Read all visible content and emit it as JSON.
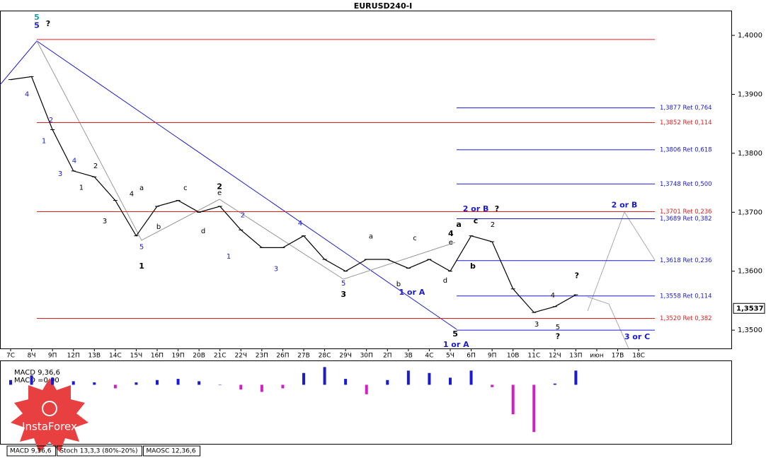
{
  "chart_data": {
    "type": "line",
    "title": "EURUSD240-I",
    "categories": [
      "7С",
      "8Ч",
      "9П",
      "12П",
      "13В",
      "14С",
      "15Ч",
      "16П",
      "19П",
      "20В",
      "21С",
      "22Ч",
      "23П",
      "26П",
      "27В",
      "28С",
      "29Ч",
      "30П",
      "2П",
      "3В",
      "4С",
      "5Ч",
      "6П",
      "9П",
      "10В",
      "11С",
      "12Ч",
      "13П",
      "июн",
      "17В",
      "18С"
    ],
    "series": [
      {
        "name": "EURUSD",
        "color": "#000000",
        "values": [
          1.3925,
          1.393,
          1.384,
          1.377,
          1.376,
          1.372,
          1.366,
          1.371,
          1.372,
          1.37,
          1.371,
          1.367,
          1.364,
          1.364,
          1.366,
          1.362,
          1.36,
          1.362,
          1.362,
          1.3605,
          1.362,
          1.36,
          1.366,
          1.365,
          1.357,
          1.353,
          1.354,
          1.356,
          null,
          null,
          null
        ]
      }
    ],
    "ylim": [
      1.3469,
      1.4042
    ],
    "yticks": [
      {
        "value": 1.35,
        "label": "1,3500"
      },
      {
        "value": 1.36,
        "label": "1,3600"
      },
      {
        "value": 1.37,
        "label": "1,3700"
      },
      {
        "value": 1.38,
        "label": "1,3800"
      },
      {
        "value": 1.39,
        "label": "1,3900"
      },
      {
        "value": 1.4,
        "label": "1,4000"
      }
    ],
    "current_price": {
      "value": 1.3537,
      "label": "1,3537"
    },
    "levels": [
      {
        "value": 1.3993,
        "color": "#e02020"
      },
      {
        "value": 1.3877,
        "label": "1,3877 Ret 0,764",
        "color": "#1a1ad0"
      },
      {
        "value": 1.3852,
        "label": "1,3852 Ret 0,114",
        "color": "#e02020"
      },
      {
        "value": 1.3806,
        "label": "1,3806 Ret 0,618",
        "color": "#1a1ad0"
      },
      {
        "value": 1.3748,
        "label": "1,3748 Ret 0,500",
        "color": "#1a1ad0"
      },
      {
        "value": 1.3701,
        "label": "1,3701 Ret 0,236",
        "color": "#e02020"
      },
      {
        "value": 1.3689,
        "label": "1,3689 Ret 0,382",
        "color": "#1a1ad0"
      },
      {
        "value": 1.3618,
        "label": "1,3618 Ret 0,236",
        "color": "#1a1ad0"
      },
      {
        "value": 1.3558,
        "label": "1,3558 Ret 0,114",
        "color": "#1a1ad0"
      },
      {
        "value": 1.352,
        "label": "1,3520 Ret 0,382",
        "color": "#e02020"
      },
      {
        "value": 1.35,
        "color": "#1a1ad0"
      }
    ],
    "annotations": [
      {
        "text": "5",
        "x": 1.25,
        "y": 1.403,
        "color": "#1a9bb5",
        "bold": true
      },
      {
        "text": "5",
        "x": 1.25,
        "y": 1.4016,
        "color": "#1a1ad0",
        "bold": true
      },
      {
        "text": "?",
        "x": 1.79,
        "y": 1.4019,
        "color": "#000000",
        "bold": true
      },
      {
        "text": "4",
        "x": 0.78,
        "y": 1.39,
        "color": "#1a1ad0"
      },
      {
        "text": "1",
        "x": 1.59,
        "y": 1.3821,
        "color": "#1a1ad0"
      },
      {
        "text": "2",
        "x": 1.93,
        "y": 1.3856,
        "color": "#1a1ad0"
      },
      {
        "text": "3",
        "x": 2.37,
        "y": 1.3765,
        "color": "#1a1ad0"
      },
      {
        "text": "4",
        "x": 3.04,
        "y": 1.3787,
        "color": "#1a1ad0"
      },
      {
        "text": "1",
        "x": 3.38,
        "y": 1.3742,
        "color": "#000000"
      },
      {
        "text": "2",
        "x": 4.06,
        "y": 1.3778,
        "color": "#000000"
      },
      {
        "text": "3",
        "x": 4.5,
        "y": 1.3685,
        "color": "#000000"
      },
      {
        "text": "4",
        "x": 5.78,
        "y": 1.3731,
        "color": "#000000"
      },
      {
        "text": "5",
        "x": 6.26,
        "y": 1.3641,
        "color": "#1a1ad0"
      },
      {
        "text": "1",
        "x": 6.26,
        "y": 1.3608,
        "color": "#000000",
        "bold": true
      },
      {
        "text": "a",
        "x": 6.26,
        "y": 1.3741,
        "color": "#000000"
      },
      {
        "text": "b",
        "x": 7.07,
        "y": 1.3675,
        "color": "#000000"
      },
      {
        "text": "c",
        "x": 8.35,
        "y": 1.3741,
        "color": "#000000"
      },
      {
        "text": "d",
        "x": 9.2,
        "y": 1.3668,
        "color": "#000000"
      },
      {
        "text": "2",
        "x": 9.98,
        "y": 1.3743,
        "color": "#000000",
        "bold": true
      },
      {
        "text": "e",
        "x": 9.98,
        "y": 1.3733,
        "color": "#000000"
      },
      {
        "text": "2",
        "x": 11.09,
        "y": 1.3695,
        "color": "#1a1ad0"
      },
      {
        "text": "1",
        "x": 10.42,
        "y": 1.3625,
        "color": "#1a1ad0"
      },
      {
        "text": "3",
        "x": 12.68,
        "y": 1.3604,
        "color": "#1a1ad0"
      },
      {
        "text": "4",
        "x": 13.83,
        "y": 1.3681,
        "color": "#1a1ad0"
      },
      {
        "text": "5",
        "x": 15.9,
        "y": 1.3579,
        "color": "#1a1ad0"
      },
      {
        "text": "3",
        "x": 15.9,
        "y": 1.356,
        "color": "#000000",
        "bold": true
      },
      {
        "text": "a",
        "x": 17.21,
        "y": 1.3659,
        "color": "#000000"
      },
      {
        "text": "b",
        "x": 18.53,
        "y": 1.3578,
        "color": "#000000"
      },
      {
        "text": "c",
        "x": 19.31,
        "y": 1.3656,
        "color": "#000000"
      },
      {
        "text": "d",
        "x": 20.76,
        "y": 1.3584,
        "color": "#000000"
      },
      {
        "text": "e",
        "x": 21.03,
        "y": 1.3649,
        "color": "#000000"
      },
      {
        "text": "1 or A",
        "x": 19.17,
        "y": 1.3564,
        "color": "#1a1ad0",
        "bold": true
      },
      {
        "text": "4",
        "x": 21.03,
        "y": 1.3663,
        "color": "#000000",
        "bold": true
      },
      {
        "text": "5",
        "x": 21.24,
        "y": 1.3493,
        "color": "#000000",
        "bold": true
      },
      {
        "text": "1 or A",
        "x": 21.28,
        "y": 1.3475,
        "color": "#1a1ad0",
        "bold": true
      },
      {
        "text": "a",
        "x": 21.41,
        "y": 1.3679,
        "color": "#000000",
        "bold": true
      },
      {
        "text": "c",
        "x": 22.22,
        "y": 1.3685,
        "color": "#000000",
        "bold": true
      },
      {
        "text": "b",
        "x": 22.08,
        "y": 1.3608,
        "color": "#000000",
        "bold": true
      },
      {
        "text": "2",
        "x": 23.03,
        "y": 1.3679,
        "color": "#000000"
      },
      {
        "text": "2 or B",
        "x": 22.22,
        "y": 1.3705,
        "color": "#1a1ad0",
        "bold": true
      },
      {
        "text": "?",
        "x": 23.23,
        "y": 1.3705,
        "color": "#000000",
        "bold": true
      },
      {
        "text": "3",
        "x": 25.13,
        "y": 1.351,
        "color": "#000000"
      },
      {
        "text": "4",
        "x": 25.9,
        "y": 1.3559,
        "color": "#000000"
      },
      {
        "text": "5",
        "x": 26.14,
        "y": 1.3505,
        "color": "#000000"
      },
      {
        "text": "?",
        "x": 26.14,
        "y": 1.3489,
        "color": "#000000",
        "bold": true
      },
      {
        "text": "?",
        "x": 27.05,
        "y": 1.3592,
        "color": "#000000",
        "bold": true
      },
      {
        "text": "2 or B",
        "x": 29.32,
        "y": 1.3712,
        "color": "#1a1ad0",
        "bold": true
      },
      {
        "text": "3 or C",
        "x": 29.93,
        "y": 1.3488,
        "color": "#1a1ad0",
        "bold": true
      }
    ],
    "macd": {
      "title": "MACD 9,36,6",
      "value_text": "MACD =0,00",
      "pos_color": "#1a1ad0",
      "neg_color": "#d020c0",
      "ylim": [
        -0.005,
        0.002
      ],
      "values": [
        0.0004,
        0.0008,
        0.0006,
        0.0003,
        0.0002,
        -0.0003,
        0.0002,
        0.0004,
        0.0005,
        0.0003,
        0.0,
        -0.0004,
        -0.0006,
        -0.0003,
        0.001,
        0.0015,
        0.0005,
        -0.0008,
        0.0004,
        0.0012,
        0.001,
        0.0006,
        0.0012,
        -0.0002,
        -0.0025,
        -0.004,
        0.0001,
        0.0012,
        null,
        null,
        null
      ]
    },
    "tabs": [
      "MACD 9,36,6",
      "Stoch 13,3,3 (80%-20%)",
      "MAOSC 12,36,6"
    ],
    "watermark": "InstaForex"
  }
}
